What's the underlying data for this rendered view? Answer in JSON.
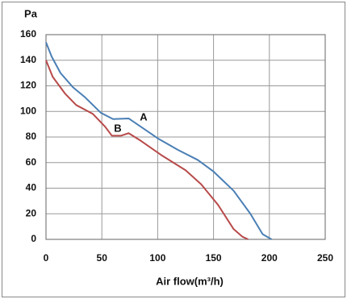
{
  "chart_data": {
    "type": "line",
    "xlabel": "Air flow(m³/h)",
    "ylabel": "Pa",
    "xlim": [
      0,
      250
    ],
    "xticks": [
      0,
      50,
      100,
      150,
      200,
      250
    ],
    "ylim": [
      0,
      160
    ],
    "yticks": [
      0,
      20,
      40,
      60,
      80,
      100,
      120,
      140,
      160
    ],
    "grid": true,
    "series": [
      {
        "name": "A",
        "color": "#4a7fb5",
        "x": [
          0,
          5,
          13,
          24,
          35,
          49,
          60,
          74,
          85,
          100,
          118,
          136,
          150,
          168,
          183,
          194,
          202
        ],
        "values": [
          154,
          143,
          130,
          119,
          111,
          99,
          94,
          94.5,
          88,
          79,
          70,
          62,
          53,
          38,
          20,
          4,
          0
        ]
      },
      {
        "name": "B",
        "color": "#b84a4a",
        "x": [
          0,
          6,
          17,
          27,
          42,
          53,
          59,
          67,
          74,
          85,
          103,
          125,
          139,
          154,
          168,
          176,
          181
        ],
        "values": [
          140,
          127,
          114,
          105,
          98,
          88,
          81,
          81,
          83,
          77,
          66,
          54,
          43,
          27,
          8,
          2,
          0
        ]
      }
    ]
  }
}
